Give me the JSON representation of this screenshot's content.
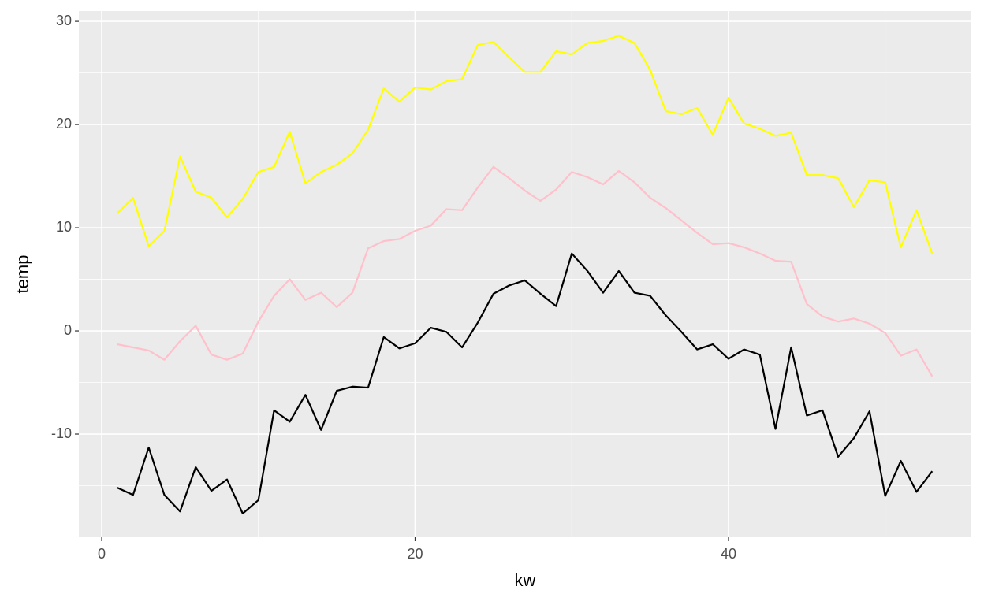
{
  "chart_data": {
    "type": "line",
    "x_label": "kw",
    "y_label": "temp",
    "x": [
      1,
      2,
      3,
      4,
      5,
      6,
      7,
      8,
      9,
      10,
      11,
      12,
      13,
      14,
      15,
      16,
      17,
      18,
      19,
      20,
      21,
      22,
      23,
      24,
      25,
      26,
      27,
      28,
      29,
      30,
      31,
      32,
      33,
      34,
      35,
      36,
      37,
      38,
      39,
      40,
      41,
      42,
      43,
      44,
      45,
      46,
      47,
      48,
      49,
      50,
      51,
      52,
      53
    ],
    "series": [
      {
        "color": "#ffff00",
        "values": [
          11.4,
          12.9,
          8.2,
          9.7,
          16.9,
          13.5,
          12.9,
          11.0,
          12.8,
          15.4,
          15.9,
          19.3,
          14.3,
          15.4,
          16.1,
          17.2,
          19.5,
          23.5,
          22.2,
          23.6,
          23.4,
          24.2,
          24.4,
          27.7,
          28.0,
          26.5,
          25.1,
          25.1,
          27.1,
          26.8,
          27.9,
          28.1,
          28.6,
          27.9,
          25.3,
          21.3,
          21.0,
          21.6,
          19.0,
          22.6,
          20.1,
          19.6,
          18.9,
          19.2,
          15.1,
          15.1,
          14.8,
          12.0,
          14.6,
          14.4,
          8.1,
          11.7,
          7.5
        ]
      },
      {
        "color": "#ffc0cb",
        "values": [
          -1.3,
          -1.6,
          -1.9,
          -2.8,
          -1.0,
          0.5,
          -2.3,
          -2.8,
          -2.2,
          0.9,
          3.4,
          5.0,
          3.0,
          3.7,
          2.3,
          3.7,
          8.0,
          8.7,
          8.9,
          9.7,
          10.2,
          11.8,
          11.7,
          13.9,
          15.9,
          14.8,
          13.6,
          12.6,
          13.7,
          15.4,
          14.9,
          14.2,
          15.5,
          14.4,
          12.9,
          11.9,
          10.7,
          9.5,
          8.4,
          8.5,
          8.1,
          7.5,
          6.8,
          6.7,
          2.6,
          1.4,
          0.9,
          1.2,
          0.7,
          -0.2,
          -2.4,
          -1.8,
          -4.4
        ]
      },
      {
        "color": "#000000",
        "values": [
          -15.2,
          -15.9,
          -11.3,
          -15.9,
          -17.5,
          -13.2,
          -15.5,
          -14.4,
          -17.7,
          -16.4,
          -7.7,
          -8.8,
          -6.2,
          -9.6,
          -5.8,
          -5.4,
          -5.5,
          -0.6,
          -1.7,
          -1.2,
          0.3,
          -0.1,
          -1.6,
          0.8,
          3.6,
          4.4,
          4.9,
          3.6,
          2.4,
          7.5,
          5.8,
          3.7,
          5.8,
          3.7,
          3.4,
          1.5,
          -0.1,
          -1.8,
          -1.3,
          -2.7,
          -1.8,
          -2.3,
          -9.5,
          -1.6,
          -8.2,
          -7.7,
          -12.2,
          -10.4,
          -7.8,
          -16.0,
          -12.6,
          -15.6,
          -13.6
        ]
      }
    ],
    "xlim": [
      -1.46,
      55.5
    ],
    "xticks": [
      0,
      20,
      40
    ],
    "ylim": [
      -20,
      31
    ],
    "yticks": [
      -10,
      0,
      10,
      20,
      30
    ],
    "grid": true,
    "minor_grid": true,
    "background": "#ebebeb"
  }
}
